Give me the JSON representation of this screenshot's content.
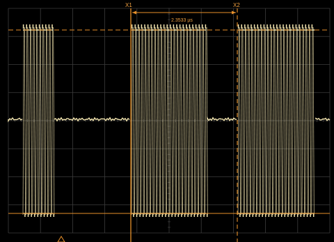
{
  "cursors": {
    "x1": {
      "label": "X1"
    },
    "x2": {
      "label": "X2"
    },
    "delta_label": "2.3533 µs"
  },
  "colors": {
    "background": "#000000",
    "grid": "#3c3c3c",
    "trace": "#f4e6b0",
    "cursor": "#e8902a"
  },
  "icons": {
    "trigger_marker": "trigger-marker-icon"
  }
}
